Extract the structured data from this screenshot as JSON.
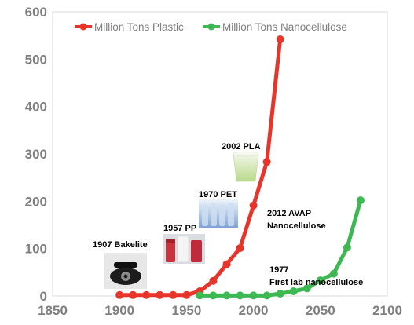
{
  "chart_data": {
    "type": "line",
    "title": "",
    "xlabel": "",
    "ylabel": "",
    "xlim": [
      1850,
      2100
    ],
    "ylim": [
      0,
      600
    ],
    "xticks": [
      1850,
      1900,
      1950,
      2000,
      2050,
      2100
    ],
    "yticks": [
      0,
      100,
      200,
      300,
      400,
      500,
      600
    ],
    "grid": false,
    "legend_position": "top",
    "series": [
      {
        "name": "Million Tons Plastic",
        "color": "#e8352b",
        "x": [
          1900,
          1910,
          1920,
          1930,
          1940,
          1950,
          1960,
          1970,
          1980,
          1990,
          2000,
          2010,
          2020
        ],
        "y": [
          2,
          2,
          2,
          2,
          2,
          2,
          10,
          32,
          67,
          101,
          191,
          283,
          542
        ]
      },
      {
        "name": "Million Tons Nanocellulose",
        "color": "#3db853",
        "x": [
          1960,
          1970,
          1980,
          1990,
          2000,
          2010,
          2020,
          2030,
          2040,
          2050,
          2060,
          2070,
          2080
        ],
        "y": [
          1,
          1,
          1,
          1,
          1,
          1,
          5,
          10,
          16,
          33,
          47,
          102,
          202
        ]
      }
    ],
    "annotations": [
      {
        "text": "1907 Bakelite",
        "icon": "telephone-icon"
      },
      {
        "text": "1957 PP",
        "icon": "sample-bottles-icon"
      },
      {
        "text": "1970 PET",
        "icon": "water-bottles-icon"
      },
      {
        "text": "2002 PLA",
        "icon": "plastic-cup-icon"
      },
      {
        "text": "2012 AVAP\nNanocellulose",
        "icon": ""
      },
      {
        "text": "1977\nFirst lab nanocellulose",
        "icon": ""
      }
    ]
  }
}
